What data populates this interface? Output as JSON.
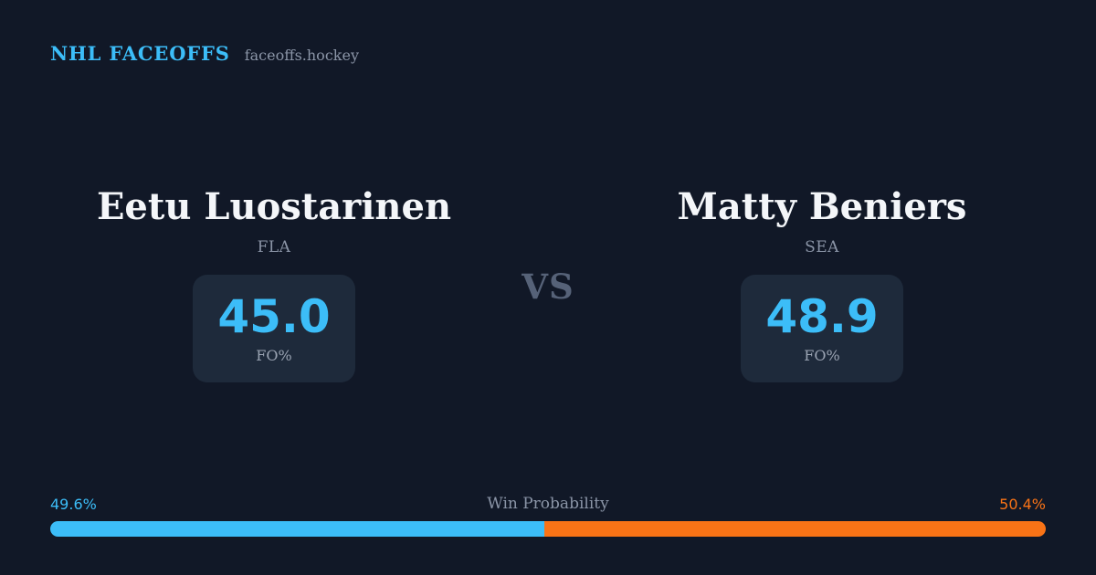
{
  "brand": {
    "title": "NHL FACEOFFS",
    "site": "faceoffs.hockey"
  },
  "matchup": {
    "vs_label": "VS",
    "left": {
      "name": "Eetu Luostarinen",
      "team": "FLA",
      "stat_value": "45.0",
      "stat_label": "FO%"
    },
    "right": {
      "name": "Matty Beniers",
      "team": "SEA",
      "stat_value": "48.9",
      "stat_label": "FO%"
    }
  },
  "win_probability": {
    "label": "Win Probability",
    "left_pct_label": "49.6%",
    "right_pct_label": "50.4%",
    "left_value": 49.6,
    "right_value": 50.4
  },
  "colors": {
    "background": "#111827",
    "card": "#1e2a3b",
    "accent_blue": "#3cbdf8",
    "accent_orange": "#f97316",
    "text_primary": "#f4f6f9",
    "text_muted": "#8b95a7",
    "vs_text": "#566278"
  },
  "chart_data": {
    "type": "bar",
    "title": "Win Probability",
    "categories": [
      "Eetu Luostarinen (FLA)",
      "Matty Beniers (SEA)"
    ],
    "series": [
      {
        "name": "FO%",
        "values": [
          45.0,
          48.9
        ]
      },
      {
        "name": "Win Probability %",
        "values": [
          49.6,
          50.4
        ]
      }
    ],
    "xlim": [
      0,
      100
    ],
    "legend": false,
    "layout": "horizontal-stacked-bar"
  }
}
